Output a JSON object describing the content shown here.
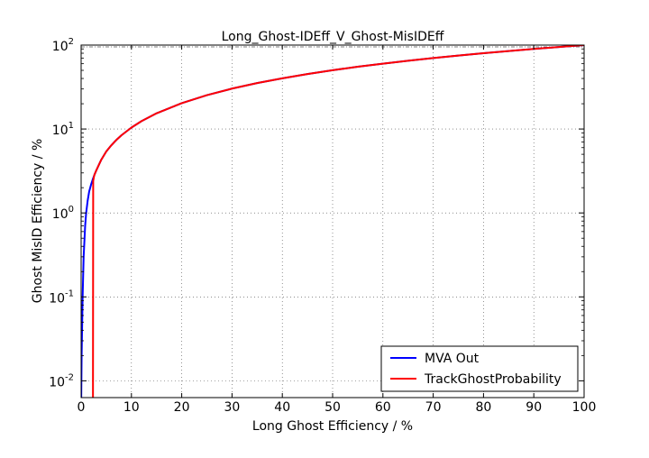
{
  "chart_data": {
    "type": "line",
    "title": "Long_Ghost-IDEff_V_Ghost-MisIDEff",
    "xlabel": "Long Ghost Efficiency / %",
    "ylabel": "Ghost MisID Efficiency / %",
    "xlim": [
      0,
      100
    ],
    "ylim_log10": [
      -2.2,
      2.0
    ],
    "yscale": "log",
    "grid": true,
    "legend_position": "lower-right",
    "x_ticks": [
      "0",
      "10",
      "20",
      "30",
      "40",
      "50",
      "60",
      "70",
      "80",
      "90",
      "100"
    ],
    "y_ticks": [
      {
        "base": "10",
        "exp": "-2"
      },
      {
        "base": "10",
        "exp": "-1"
      },
      {
        "base": "10",
        "exp": "0"
      },
      {
        "base": "10",
        "exp": "1"
      },
      {
        "base": "10",
        "exp": "2"
      }
    ],
    "series": [
      {
        "name": "MVA Out",
        "color": "#0000ff",
        "x": [
          0.02,
          0.1,
          0.3,
          0.5,
          0.8,
          1.0,
          1.3,
          1.6,
          2.0,
          2.3,
          2.6,
          3.0,
          4.0,
          5.0,
          6.0,
          7.0,
          8.0,
          10,
          12,
          15,
          20,
          25,
          30,
          35,
          40,
          45,
          50,
          55,
          60,
          65,
          70,
          75,
          80,
          85,
          90,
          95,
          100
        ],
        "y": [
          0.006,
          0.02,
          0.1,
          0.3,
          0.7,
          1.0,
          1.4,
          1.8,
          2.2,
          2.5,
          2.8,
          3.2,
          4.3,
          5.4,
          6.4,
          7.4,
          8.4,
          10.4,
          12.4,
          15.4,
          20.3,
          25.3,
          30.3,
          35.3,
          40.2,
          45.2,
          50.2,
          55.2,
          60.1,
          65.1,
          70.1,
          75.1,
          80.1,
          85.0,
          90.0,
          95.0,
          100
        ]
      },
      {
        "name": "TrackGhostProbability",
        "color": "#ff0000",
        "x": [
          2.35,
          2.4,
          2.6,
          3.0,
          4.0,
          5.0,
          6.0,
          7.0,
          8.0,
          10,
          12,
          15,
          20,
          25,
          30,
          35,
          40,
          45,
          50,
          55,
          60,
          65,
          70,
          75,
          80,
          85,
          90,
          95,
          100
        ],
        "y": [
          0.003,
          2.4,
          2.8,
          3.2,
          4.3,
          5.4,
          6.4,
          7.4,
          8.4,
          10.4,
          12.4,
          15.4,
          20.3,
          25.3,
          30.3,
          35.3,
          40.2,
          45.2,
          50.2,
          55.2,
          60.1,
          65.1,
          70.1,
          75.1,
          80.1,
          85.0,
          90.0,
          95.0,
          100
        ]
      }
    ]
  }
}
